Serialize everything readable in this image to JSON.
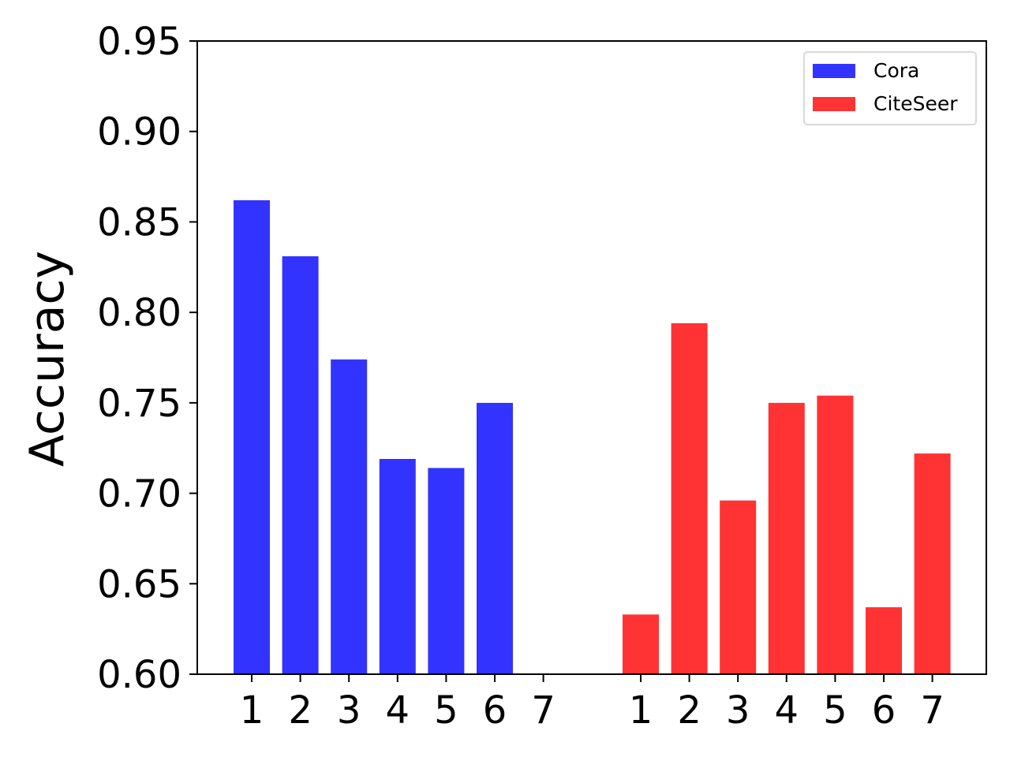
{
  "chart_data": {
    "type": "bar",
    "ylabel": "Accuracy",
    "xlabel": "",
    "title": "",
    "ylim": [
      0.6,
      0.95
    ],
    "yticks": [
      "0.60",
      "0.65",
      "0.70",
      "0.75",
      "0.80",
      "0.85",
      "0.90",
      "0.95"
    ],
    "legend_position": "top-right",
    "grid": false,
    "series": [
      {
        "name": "Cora",
        "color": "#3333ff",
        "categories": [
          "1",
          "2",
          "3",
          "4",
          "5",
          "6",
          "7"
        ],
        "values": [
          0.862,
          0.831,
          0.774,
          0.719,
          0.714,
          0.75,
          null
        ]
      },
      {
        "name": "CiteSeer",
        "color": "#ff3333",
        "categories": [
          "1",
          "2",
          "3",
          "4",
          "5",
          "6",
          "7"
        ],
        "values": [
          0.633,
          0.794,
          0.696,
          0.75,
          0.754,
          0.637,
          0.722
        ]
      }
    ]
  }
}
